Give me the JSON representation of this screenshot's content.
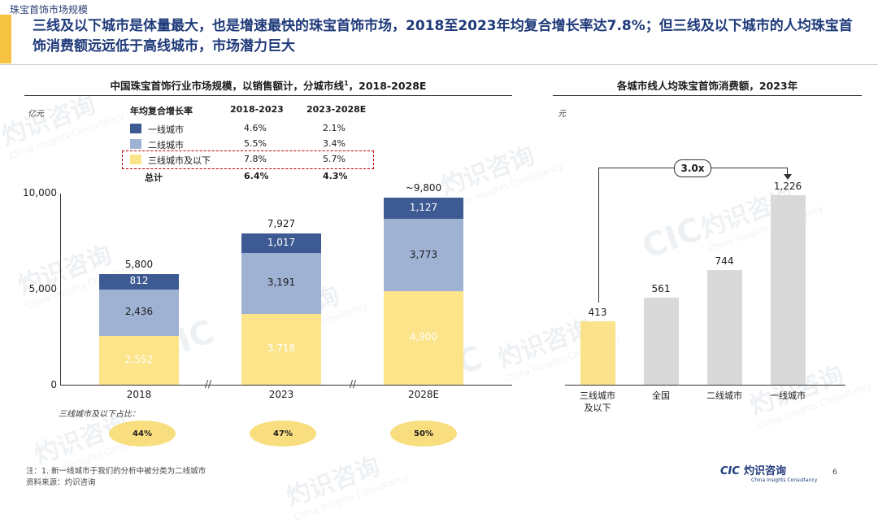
{
  "page": {
    "section_title": "珠宝首饰市场规模",
    "headline": "三线及以下城市是体量最大，也是增速最快的珠宝首饰市场，2018至2023年均复合增长率达7.8%；但三线及以下城市的人均珠宝首饰消费额远远低于高线城市，市场潜力巨大",
    "page_number": "6",
    "logo_mark": "CIC",
    "logo_cn": "灼识咨询",
    "logo_en": "China Insights Consultancy",
    "watermark_cn": "灼识咨询",
    "watermark_en": "China Insights Consultancy",
    "watermark_mark": "CIC",
    "footnote_1": "注：1. 新一线城市于我们的分析中被分类为二线城市",
    "footnote_2": "资料来源：灼识咨询"
  },
  "colors": {
    "tier1": "#3d5a93",
    "tier2": "#9fb2d4",
    "tier3": "#fce48a",
    "tier3_right": "#fbe38c",
    "grey_bar": "#d9d9d9",
    "highlight": "#c00000",
    "headline": "#1f3a7a"
  },
  "chart_data": [
    {
      "type": "bar",
      "stacked": true,
      "title": "中国珠宝首饰行业市场规模，以销售额计，分城市线",
      "title_sup": "1",
      "title_suffix": "，2018-2028E",
      "unit": "亿元",
      "categories": [
        "2018",
        "2023",
        "2028E"
      ],
      "series": [
        {
          "name": "三线城市及以下",
          "values": [
            2552,
            3718,
            4900
          ],
          "labels": [
            "2,552",
            "3,718",
            "4,900"
          ]
        },
        {
          "name": "二线城市",
          "values": [
            2436,
            3191,
            3773
          ],
          "labels": [
            "2,436",
            "3,191",
            "3,773"
          ]
        },
        {
          "name": "一线城市",
          "values": [
            812,
            1017,
            1127
          ],
          "labels": [
            "812",
            "1,017",
            "1,127"
          ]
        }
      ],
      "totals": [
        "5,800",
        "7,927",
        "~9,800"
      ],
      "ylim": [
        0,
        10000
      ],
      "yticks": [
        0,
        5000,
        10000
      ],
      "ytick_labels": [
        "0",
        "5,000",
        "10,000"
      ],
      "axis_break": "//",
      "legend": {
        "header": "年均复合增长率",
        "period_1": "2018-2023",
        "period_2": "2023-2028E",
        "rows": [
          {
            "name": "一线城市",
            "cagr_1": "4.6%",
            "cagr_2": "2.1%"
          },
          {
            "name": "二线城市",
            "cagr_1": "5.5%",
            "cagr_2": "3.4%"
          },
          {
            "name": "三线城市及以下",
            "cagr_1": "7.8%",
            "cagr_2": "5.7%",
            "highlighted": true
          },
          {
            "name": "总计",
            "cagr_1": "6.4%",
            "cagr_2": "4.3%"
          }
        ]
      },
      "share_label": "三线城市及以下占比：",
      "share_values": [
        "44%",
        "47%",
        "50%"
      ]
    },
    {
      "type": "bar",
      "title": "各城市线人均珠宝首饰消费额，2023年",
      "unit": "元",
      "categories": [
        "三线城市及以下",
        "全国",
        "二线城市",
        "一线城市"
      ],
      "category_lines": [
        [
          "三线城市",
          "及以下"
        ],
        [
          "全国"
        ],
        [
          "二线城市"
        ],
        [
          "一线城市"
        ]
      ],
      "values": [
        413,
        561,
        744,
        1226
      ],
      "labels": [
        "413",
        "561",
        "744",
        "1,226"
      ],
      "ylim": [
        0,
        1226
      ],
      "ratio_label": "3.0x"
    }
  ]
}
